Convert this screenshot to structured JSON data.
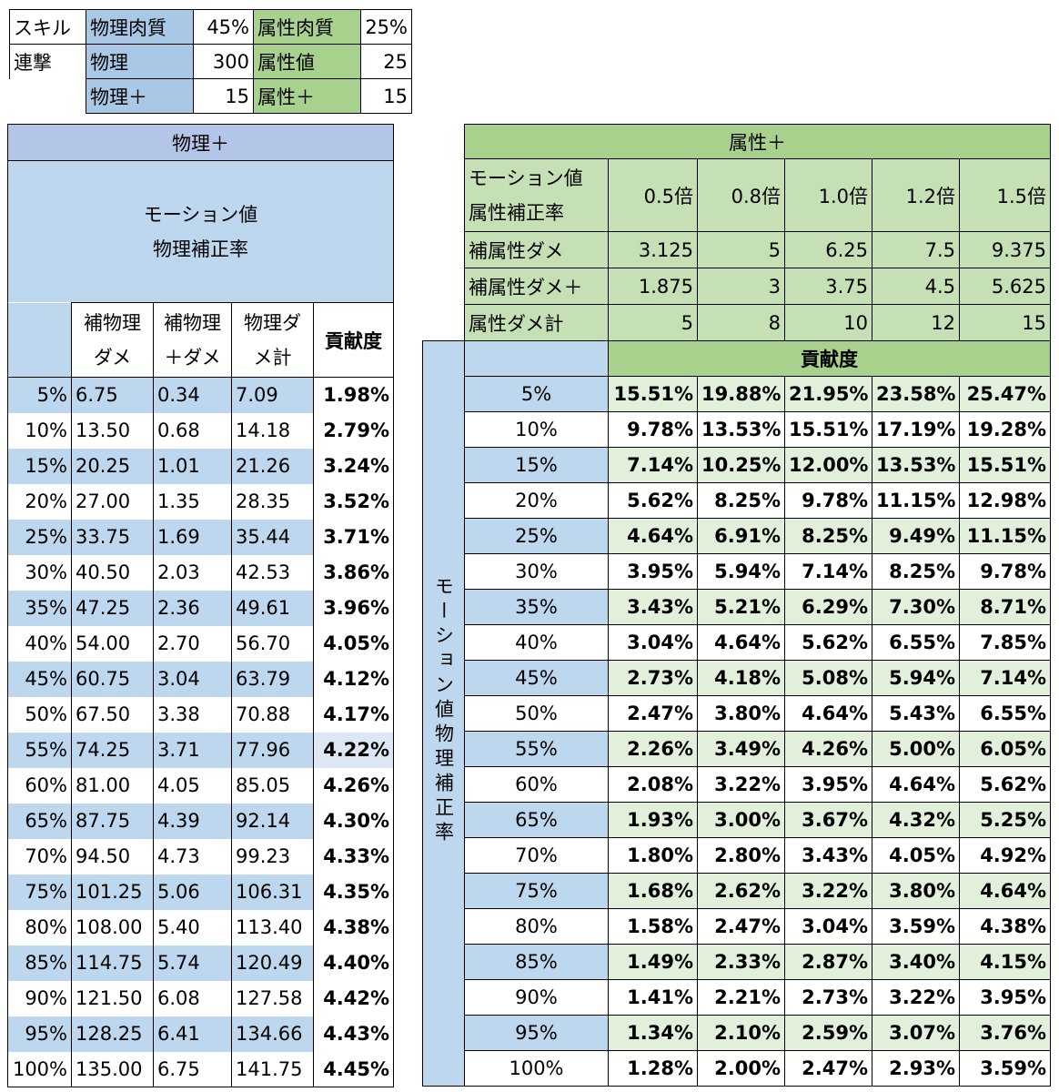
{
  "skill_table": {
    "skill_label": "スキル",
    "skill_name": "連撃",
    "phys_quality_label": "物理肉質",
    "phys_quality_value": "45%",
    "elem_quality_label": "属性肉質",
    "elem_quality_value": "25%",
    "phys_label": "物理",
    "phys_value": "300",
    "elem_label": "属性値",
    "elem_value": "25",
    "phys_plus_label": "物理＋",
    "phys_plus_value": "15",
    "elem_plus_label": "属性＋",
    "elem_plus_value": "15"
  },
  "phys_table": {
    "title": "物理＋",
    "header_line1": "モーション値",
    "header_line2": "物理補正率",
    "col1": "補物理ダメ",
    "col2": "補物理＋ダメ",
    "col3": "物理ダメ計",
    "col4": "貢献度",
    "rows": [
      [
        "5%",
        "6.75",
        "0.34",
        "7.09",
        "1.98%"
      ],
      [
        "10%",
        "13.50",
        "0.68",
        "14.18",
        "2.79%"
      ],
      [
        "15%",
        "20.25",
        "1.01",
        "21.26",
        "3.24%"
      ],
      [
        "20%",
        "27.00",
        "1.35",
        "28.35",
        "3.52%"
      ],
      [
        "25%",
        "33.75",
        "1.69",
        "35.44",
        "3.71%"
      ],
      [
        "30%",
        "40.50",
        "2.03",
        "42.53",
        "3.86%"
      ],
      [
        "35%",
        "47.25",
        "2.36",
        "49.61",
        "3.96%"
      ],
      [
        "40%",
        "54.00",
        "2.70",
        "56.70",
        "4.05%"
      ],
      [
        "45%",
        "60.75",
        "3.04",
        "63.79",
        "4.12%"
      ],
      [
        "50%",
        "67.50",
        "3.38",
        "70.88",
        "4.17%"
      ],
      [
        "55%",
        "74.25",
        "3.71",
        "77.96",
        "4.22%"
      ],
      [
        "60%",
        "81.00",
        "4.05",
        "85.05",
        "4.26%"
      ],
      [
        "65%",
        "87.75",
        "4.39",
        "92.14",
        "4.30%"
      ],
      [
        "70%",
        "94.50",
        "4.73",
        "99.23",
        "4.33%"
      ],
      [
        "75%",
        "101.25",
        "5.06",
        "106.31",
        "4.35%"
      ],
      [
        "80%",
        "108.00",
        "5.40",
        "113.40",
        "4.38%"
      ],
      [
        "85%",
        "114.75",
        "5.74",
        "120.49",
        "4.40%"
      ],
      [
        "90%",
        "121.50",
        "6.08",
        "127.58",
        "4.42%"
      ],
      [
        "95%",
        "128.25",
        "6.41",
        "134.66",
        "4.43%"
      ],
      [
        "100%",
        "135.00",
        "6.75",
        "141.75",
        "4.45%"
      ]
    ]
  },
  "elem_table": {
    "title": "属性＋",
    "header_line1": "モーション値",
    "header_line2": "属性補正率",
    "multipliers": [
      "0.5倍",
      "0.8倍",
      "1.0倍",
      "1.2倍",
      "1.5倍"
    ],
    "rows": [
      {
        "label": "補属性ダメ",
        "values": [
          "3.125",
          "5",
          "6.25",
          "7.5",
          "9.375"
        ]
      },
      {
        "label": "補属性ダメ＋",
        "values": [
          "1.875",
          "3",
          "3.75",
          "4.5",
          "5.625"
        ]
      },
      {
        "label": "属性ダメ計",
        "values": [
          "5",
          "8",
          "10",
          "12",
          "15"
        ]
      }
    ]
  },
  "contrib_table": {
    "side_label": "モーション値物理補正率",
    "title": "貢献度",
    "rows": [
      [
        "5%",
        "15.51%",
        "19.88%",
        "21.95%",
        "23.58%",
        "25.47%"
      ],
      [
        "10%",
        "9.78%",
        "13.53%",
        "15.51%",
        "17.19%",
        "19.28%"
      ],
      [
        "15%",
        "7.14%",
        "10.25%",
        "12.00%",
        "13.53%",
        "15.51%"
      ],
      [
        "20%",
        "5.62%",
        "8.25%",
        "9.78%",
        "11.15%",
        "12.98%"
      ],
      [
        "25%",
        "4.64%",
        "6.91%",
        "8.25%",
        "9.49%",
        "11.15%"
      ],
      [
        "30%",
        "3.95%",
        "5.94%",
        "7.14%",
        "8.25%",
        "9.78%"
      ],
      [
        "35%",
        "3.43%",
        "5.21%",
        "6.29%",
        "7.30%",
        "8.71%"
      ],
      [
        "40%",
        "3.04%",
        "4.64%",
        "5.62%",
        "6.55%",
        "7.85%"
      ],
      [
        "45%",
        "2.73%",
        "4.18%",
        "5.08%",
        "5.94%",
        "7.14%"
      ],
      [
        "50%",
        "2.47%",
        "3.80%",
        "4.64%",
        "5.43%",
        "6.55%"
      ],
      [
        "55%",
        "2.26%",
        "3.49%",
        "4.26%",
        "5.00%",
        "6.05%"
      ],
      [
        "60%",
        "2.08%",
        "3.22%",
        "3.95%",
        "4.64%",
        "5.62%"
      ],
      [
        "65%",
        "1.93%",
        "3.00%",
        "3.67%",
        "4.32%",
        "5.25%"
      ],
      [
        "70%",
        "1.80%",
        "2.80%",
        "3.43%",
        "4.05%",
        "4.92%"
      ],
      [
        "75%",
        "1.68%",
        "2.62%",
        "3.22%",
        "3.80%",
        "4.64%"
      ],
      [
        "80%",
        "1.58%",
        "2.47%",
        "3.04%",
        "3.59%",
        "4.38%"
      ],
      [
        "85%",
        "1.49%",
        "2.33%",
        "2.87%",
        "3.40%",
        "4.15%"
      ],
      [
        "90%",
        "1.41%",
        "2.21%",
        "2.73%",
        "3.22%",
        "3.95%"
      ],
      [
        "95%",
        "1.34%",
        "2.10%",
        "2.59%",
        "3.07%",
        "3.76%"
      ],
      [
        "100%",
        "1.28%",
        "2.00%",
        "2.47%",
        "2.93%",
        "3.59%"
      ]
    ]
  }
}
